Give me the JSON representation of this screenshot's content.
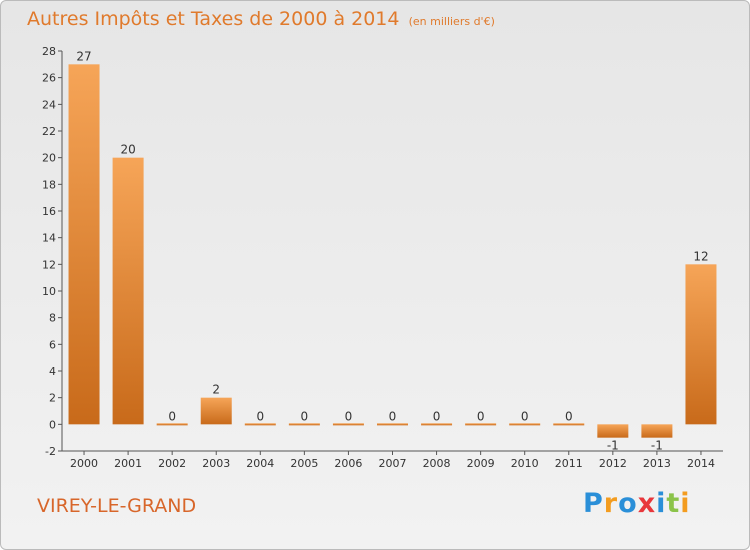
{
  "title": "Autres Impôts et Taxes de 2000 à 2014",
  "unit_label": "(en milliers d'€)",
  "commune": "VIREY-LE-GRAND",
  "brand": {
    "letters": [
      "P",
      "r",
      "o",
      "x",
      "i",
      "t",
      "i"
    ],
    "colors": [
      "#2a8fd8",
      "#f39c1f",
      "#2a8fd8",
      "#e8373c",
      "#2a8fd8",
      "#8bc34a",
      "#f39c1f"
    ]
  },
  "colors": {
    "bar_light": "#f6a558",
    "bar_dark": "#c86a1a",
    "title": "#e07a2c",
    "axis": "#555555"
  },
  "chart_data": {
    "type": "bar",
    "title": "Autres Impôts et Taxes de 2000 à 2014",
    "subtitle": "(en milliers d'€)",
    "categories": [
      "2000",
      "2001",
      "2002",
      "2003",
      "2004",
      "2005",
      "2006",
      "2007",
      "2008",
      "2009",
      "2010",
      "2011",
      "2012",
      "2013",
      "2014"
    ],
    "values": [
      27,
      20,
      0,
      2,
      0,
      0,
      0,
      0,
      0,
      0,
      0,
      0,
      -1,
      -1,
      12
    ],
    "ylim": [
      -2,
      28
    ],
    "yticks": [
      -2,
      0,
      2,
      4,
      6,
      8,
      10,
      12,
      14,
      16,
      18,
      20,
      22,
      24,
      26,
      28
    ],
    "grid": false,
    "xlabel": "",
    "ylabel": ""
  }
}
